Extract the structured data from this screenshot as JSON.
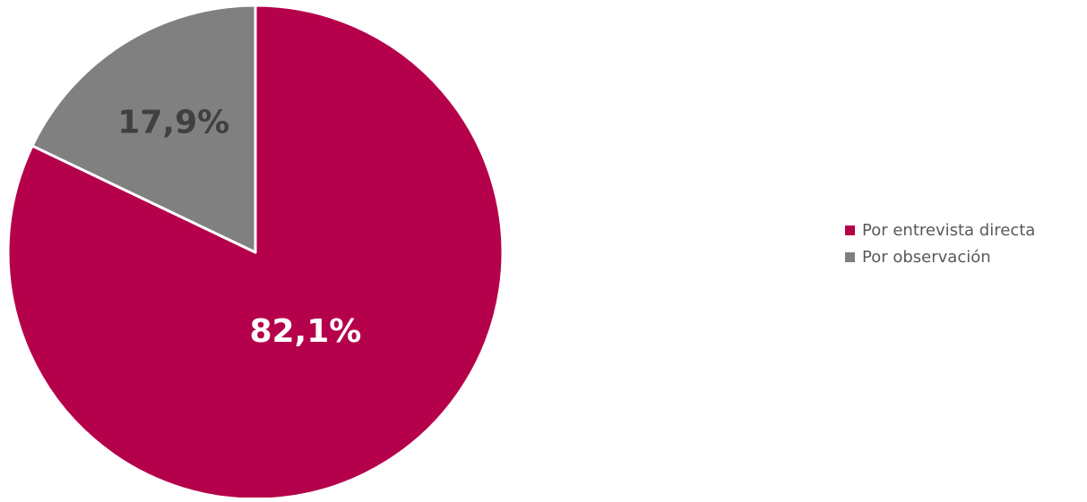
{
  "chart_data": {
    "type": "pie",
    "title": "",
    "slices": [
      {
        "name": "Por entrevista directa",
        "value": 82.1,
        "label": "82,1%",
        "color": "#B5004B",
        "label_color": "#FFFFFF"
      },
      {
        "name": "Por observación",
        "value": 17.9,
        "label": "17,9%",
        "color": "#808080",
        "label_color": "#404040"
      }
    ],
    "start_angle_deg": 0,
    "direction": "clockwise",
    "legend_position": "right"
  },
  "legend": {
    "items": [
      {
        "label": "Por entrevista directa",
        "color": "#B5004B"
      },
      {
        "label": "Por observación",
        "color": "#808080"
      }
    ]
  }
}
